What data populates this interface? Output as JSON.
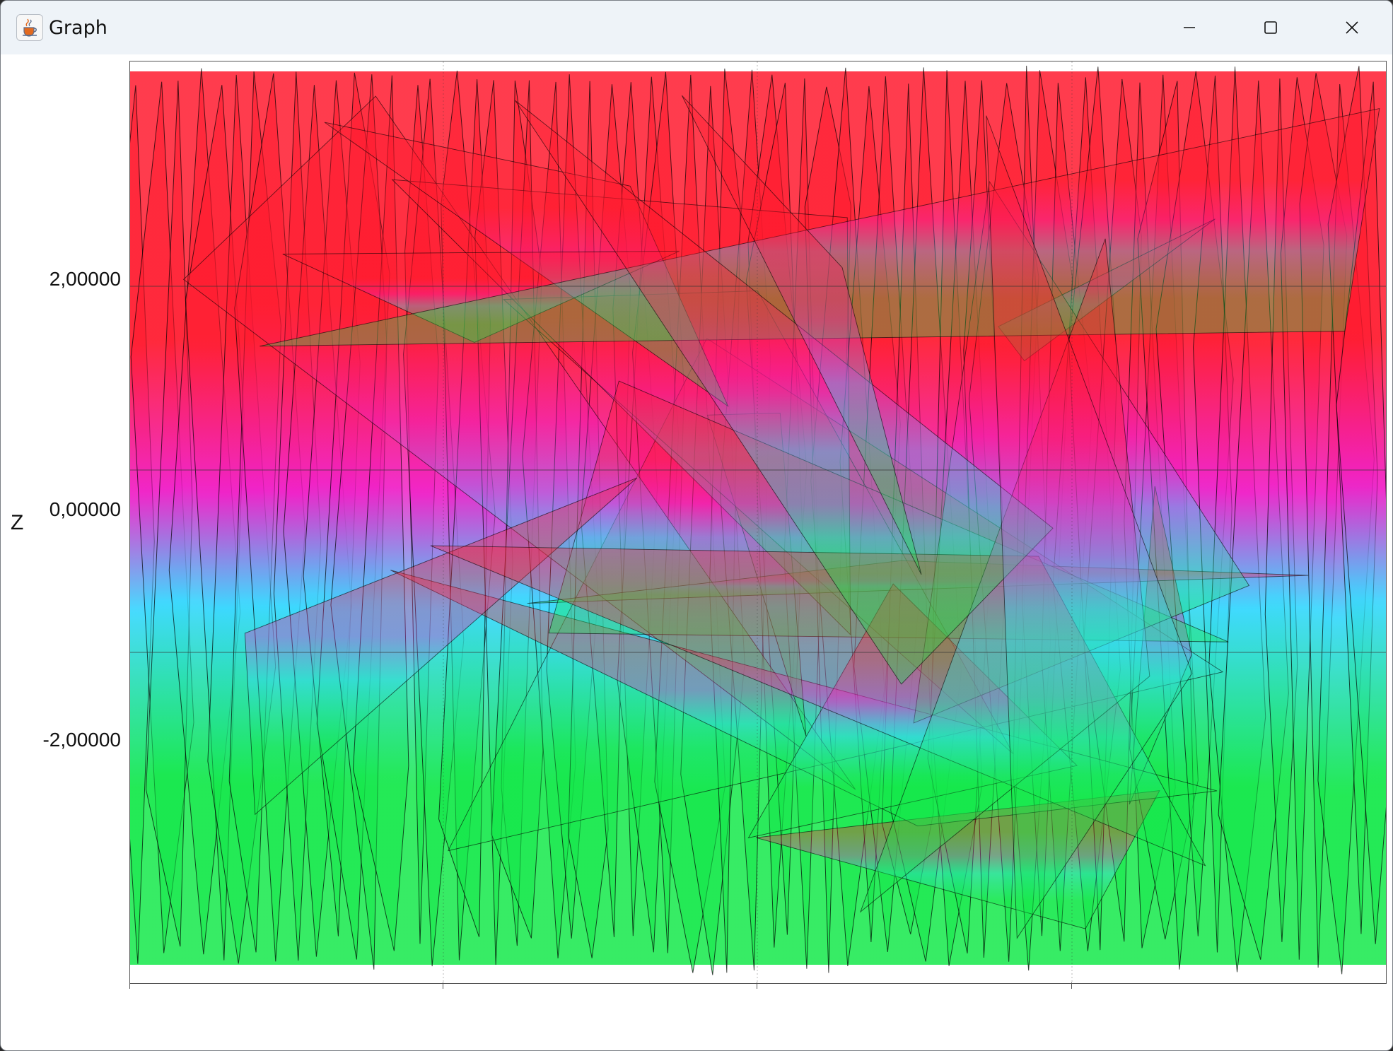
{
  "window": {
    "title": "Graph",
    "icon": "java-cup-icon",
    "controls": [
      "minimize-icon",
      "maximize-icon",
      "close-icon"
    ]
  },
  "graph": {
    "z_axis_label": "Z",
    "y_ticks": [
      "2,00000",
      "0,00000",
      "-2,00000"
    ],
    "colors": {
      "top": "#ff1a2e",
      "upper_mid": "#f020c8",
      "middle": "#3ad8ff",
      "lower": "#14e84a",
      "edge": "#000000"
    }
  }
}
